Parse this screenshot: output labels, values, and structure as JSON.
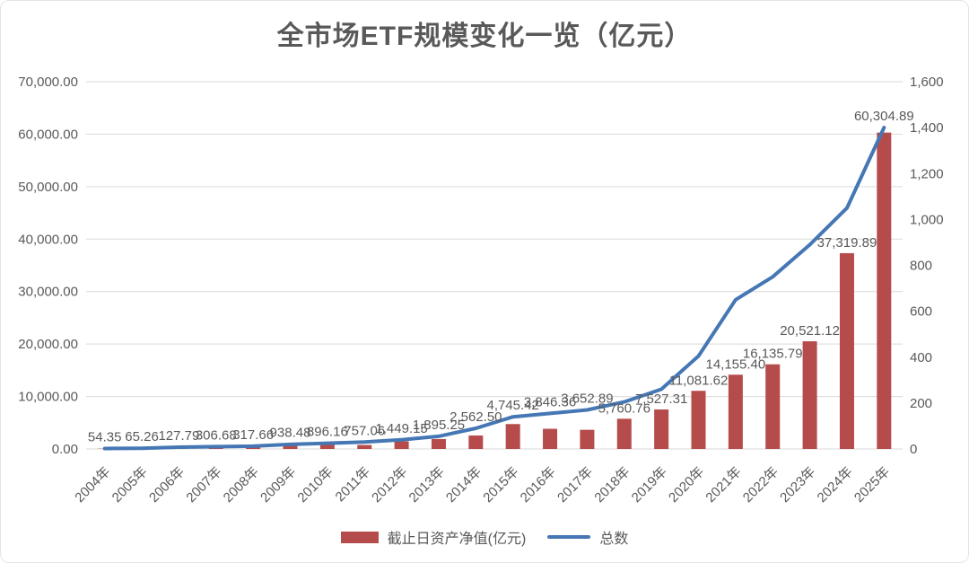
{
  "colors": {
    "bar": "#b64b4b",
    "line": "#4577b4",
    "grid": "#d9d9d9",
    "axis_text": "#595959",
    "label_text": "#595959",
    "title_text": "#595959"
  },
  "chart_data": {
    "type": "bar",
    "title": "全市场ETF规模变化一览（亿元）",
    "categories": [
      "2004年",
      "2005年",
      "2006年",
      "2007年",
      "2008年",
      "2009年",
      "2010年",
      "2011年",
      "2012年",
      "2013年",
      "2014年",
      "2015年",
      "2016年",
      "2017年",
      "2018年",
      "2019年",
      "2020年",
      "2021年",
      "2022年",
      "2023年",
      "2024年",
      "2025年"
    ],
    "series": [
      {
        "name": "截止日资产净值(亿元)",
        "kind": "bar",
        "axis": "left",
        "values": [
          54.35,
          65.26,
          127.79,
          306.68,
          317.66,
          938.48,
          896.16,
          757.06,
          1449.15,
          1895.25,
          2562.5,
          4745.42,
          3846.36,
          3652.89,
          5760.76,
          7527.31,
          11081.62,
          14155.4,
          16135.79,
          20521.12,
          37319.89,
          60304.89
        ],
        "value_labels": [
          "54.35",
          "65.26",
          "127.79",
          "306.68",
          "317.66",
          "938.48",
          "896.16",
          "757.06",
          "1,449.15",
          "1,895.25",
          "2,562.50",
          "4,745.42",
          "3,846.36",
          "3,652.89",
          "5,760.76",
          "7,527.31",
          "11,081.62",
          "14,155.40",
          "16,135.79",
          "20,521.12",
          "37,319.89",
          "60,304.89"
        ]
      },
      {
        "name": "总数",
        "kind": "line",
        "axis": "right",
        "values": [
          2,
          3,
          8,
          10,
          12,
          20,
          25,
          30,
          40,
          55,
          90,
          140,
          155,
          170,
          205,
          260,
          405,
          650,
          750,
          890,
          1050,
          1400
        ]
      }
    ],
    "left_axis": {
      "min": 0,
      "max": 70000,
      "step": 10000,
      "tick_labels": [
        "0.00",
        "10,000.00",
        "20,000.00",
        "30,000.00",
        "40,000.00",
        "50,000.00",
        "60,000.00",
        "70,000.00"
      ]
    },
    "right_axis": {
      "min": 0,
      "max": 1600,
      "step": 200,
      "tick_labels": [
        "0",
        "200",
        "400",
        "600",
        "800",
        "1,000",
        "1,200",
        "1,400",
        "1,600"
      ]
    },
    "grid": "horizontal",
    "legend_position": "bottom"
  }
}
